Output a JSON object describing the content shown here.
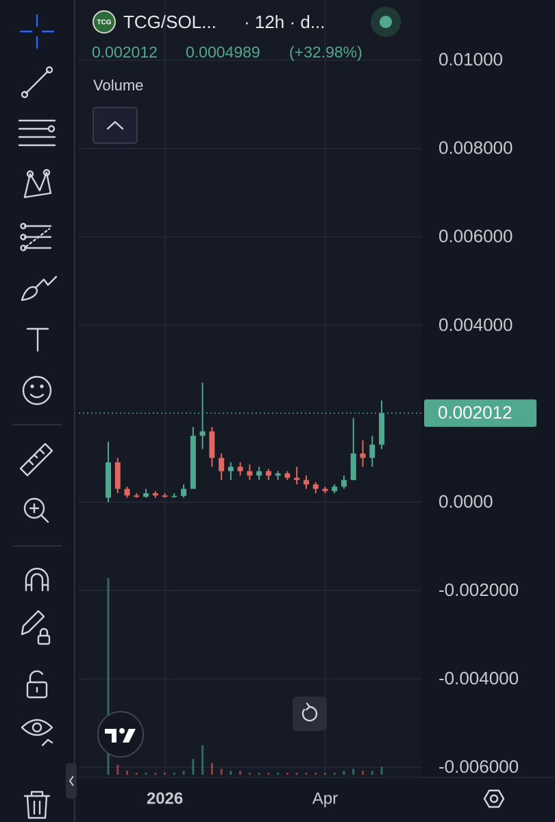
{
  "header": {
    "logo": "TCG",
    "symbol": "TCG/SOL...",
    "interval": "· 12h · d...",
    "price": "0.002012",
    "change": "0.0004989",
    "change_percent": "(+32.98%)",
    "indicator": "Volume"
  },
  "chart_data": {
    "type": "candlestick",
    "categories": [
      null,
      null,
      null,
      null,
      null,
      null,
      "2026",
      null,
      null,
      null,
      null,
      null,
      null,
      null,
      null,
      null,
      null,
      null,
      null,
      null,
      null,
      null,
      null,
      "Apr",
      null,
      null,
      null,
      null,
      null,
      null
    ],
    "open": [
      0.0001,
      0.0009,
      0.0003,
      0.00015,
      0.00012,
      0.0002,
      0.00015,
      0.00012,
      0.00014,
      0.0003,
      0.0015,
      0.0016,
      0.001,
      0.0007,
      0.0008,
      0.0007,
      0.0006,
      0.0007,
      0.0006,
      0.00065,
      0.00055,
      0.0005,
      0.0004,
      0.0003,
      0.00025,
      0.00035,
      0.0005,
      0.0011,
      0.001,
      0.0013
    ],
    "high": [
      0.00137,
      0.001,
      0.00035,
      0.0002,
      0.0003,
      0.00025,
      0.0002,
      0.0002,
      0.0004,
      0.0017,
      0.0027,
      0.0017,
      0.0011,
      0.0009,
      0.0009,
      0.00085,
      0.0008,
      0.00075,
      0.0007,
      0.0007,
      0.0008,
      0.0006,
      0.00045,
      0.00035,
      0.0004,
      0.0006,
      0.0019,
      0.0014,
      0.0015,
      0.0023
    ],
    "low": [
      0.0,
      0.0002,
      0.0001,
      0.0001,
      0.0001,
      0.0001,
      0.0001,
      0.0001,
      0.0001,
      0.0003,
      0.0012,
      0.0008,
      0.0005,
      0.0005,
      0.0006,
      0.0005,
      0.0005,
      0.0005,
      0.0005,
      0.0005,
      0.0004,
      0.0003,
      0.0002,
      0.0002,
      0.0002,
      0.0003,
      0.0005,
      0.0008,
      0.0008,
      0.0012
    ],
    "close": [
      0.0009,
      0.0003,
      0.00015,
      0.00012,
      0.0002,
      0.00015,
      0.00012,
      0.00014,
      0.0003,
      0.0015,
      0.0016,
      0.001,
      0.0007,
      0.0008,
      0.0007,
      0.0006,
      0.0007,
      0.0006,
      0.00065,
      0.00055,
      0.0005,
      0.0004,
      0.0003,
      0.00025,
      0.00035,
      0.0005,
      0.0011,
      0.001,
      0.0013,
      0.002012
    ],
    "volume": [
      100,
      5,
      2,
      1,
      1,
      1,
      1,
      1,
      2,
      8,
      15,
      6,
      3,
      2,
      2,
      1,
      1,
      1,
      1,
      1,
      1,
      1,
      1,
      1,
      1,
      2,
      3,
      2,
      2,
      4
    ],
    "up_color": "#4fa88f",
    "down_color": "#e0675f",
    "last_price": 0.002012,
    "ylim": [
      -0.00623,
      0.01136
    ],
    "yticks": [
      {
        "value": 0.01,
        "label": "0.01000"
      },
      {
        "value": 0.008,
        "label": "0.008000"
      },
      {
        "value": 0.006,
        "label": "0.006000"
      },
      {
        "value": 0.004,
        "label": "0.004000"
      },
      {
        "value": 0,
        "label": "0.0000"
      },
      {
        "value": -0.002,
        "label": "-0.002000"
      },
      {
        "value": -0.004,
        "label": "-0.004000"
      },
      {
        "value": -0.006,
        "label": "-0.006000"
      }
    ],
    "grid": true
  }
}
